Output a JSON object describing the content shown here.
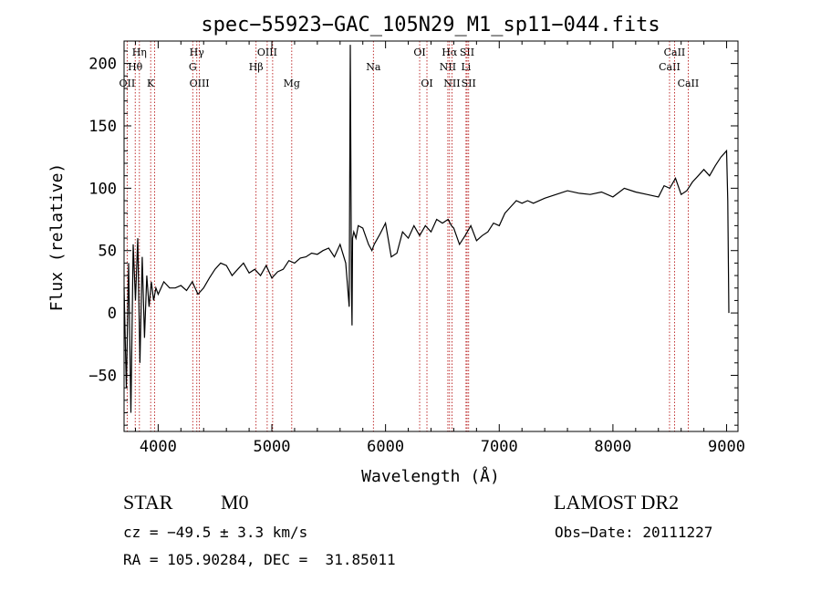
{
  "chart_data": {
    "type": "line",
    "title": "spec−55923−GAC_105N29_M1_sp11−044.fits",
    "xlabel": "Wavelength (Å)",
    "ylabel": "Flux (relative)",
    "xlim": [
      3700,
      9100
    ],
    "ylim": [
      -95,
      218
    ],
    "x_ticks": [
      4000,
      5000,
      6000,
      7000,
      8000,
      9000
    ],
    "y_ticks": [
      -50,
      0,
      50,
      100,
      150,
      200
    ],
    "y_tick_labels": [
      "−50",
      "0",
      "50",
      "100",
      "150",
      "200"
    ],
    "grid": false,
    "series": [
      {
        "x": [
          3700,
          3720,
          3740,
          3760,
          3780,
          3800,
          3820,
          3840,
          3860,
          3880,
          3900,
          3920,
          3940,
          3960,
          3980,
          4000,
          4050,
          4100,
          4150,
          4200,
          4250,
          4300,
          4350,
          4400,
          4450,
          4500,
          4550,
          4600,
          4650,
          4700,
          4750,
          4800,
          4850,
          4900,
          4950,
          5000,
          5050,
          5100,
          5150,
          5200,
          5250,
          5300,
          5350,
          5400,
          5450,
          5500,
          5550,
          5600,
          5650,
          5680,
          5690,
          5700,
          5705,
          5710,
          5720,
          5740,
          5760,
          5800,
          5850,
          5880,
          5900,
          5950,
          6000,
          6050,
          6100,
          6150,
          6200,
          6250,
          6300,
          6350,
          6400,
          6450,
          6500,
          6550,
          6580,
          6600,
          6650,
          6700,
          6750,
          6800,
          6850,
          6900,
          6950,
          7000,
          7050,
          7100,
          7150,
          7200,
          7250,
          7300,
          7400,
          7500,
          7600,
          7700,
          7800,
          7900,
          8000,
          8100,
          8200,
          8300,
          8400,
          8450,
          8500,
          8550,
          8600,
          8650,
          8700,
          8750,
          8800,
          8850,
          8900,
          8950,
          9000,
          9010,
          9020
        ],
        "y": [
          20,
          -60,
          40,
          -80,
          55,
          10,
          60,
          -40,
          45,
          -20,
          30,
          5,
          25,
          10,
          20,
          15,
          25,
          20,
          20,
          22,
          18,
          25,
          15,
          20,
          28,
          35,
          40,
          38,
          30,
          35,
          40,
          32,
          35,
          30,
          38,
          28,
          33,
          35,
          42,
          40,
          44,
          45,
          48,
          47,
          50,
          52,
          45,
          55,
          40,
          5,
          215,
          20,
          -10,
          60,
          65,
          60,
          70,
          68,
          55,
          50,
          55,
          63,
          72,
          45,
          48,
          65,
          60,
          70,
          62,
          70,
          65,
          75,
          72,
          75,
          70,
          68,
          55,
          62,
          70,
          58,
          62,
          65,
          72,
          70,
          80,
          85,
          90,
          88,
          90,
          88,
          92,
          95,
          98,
          96,
          95,
          97,
          93,
          100,
          97,
          95,
          93,
          102,
          100,
          108,
          95,
          98,
          105,
          110,
          115,
          110,
          118,
          125,
          130,
          90,
          0
        ]
      }
    ],
    "line_markers": [
      {
        "wl": 3727,
        "label": "OII",
        "row": 3
      },
      {
        "wl": 3798,
        "label": "Hθ",
        "row": 2
      },
      {
        "wl": 3835,
        "label": "Hη",
        "row": 1
      },
      {
        "wl": 3934,
        "label": "K",
        "row": 3
      },
      {
        "wl": 3969,
        "label": "",
        "row": 0
      },
      {
        "wl": 4304,
        "label": "G",
        "row": 2
      },
      {
        "wl": 4340,
        "label": "Hγ",
        "row": 1
      },
      {
        "wl": 4363,
        "label": "OIII",
        "row": 3
      },
      {
        "wl": 4861,
        "label": "Hβ",
        "row": 2
      },
      {
        "wl": 4959,
        "label": "OIII",
        "row": 1
      },
      {
        "wl": 5007,
        "label": "",
        "row": 0
      },
      {
        "wl": 5175,
        "label": "Mg",
        "row": 3
      },
      {
        "wl": 5893,
        "label": "Na",
        "row": 2
      },
      {
        "wl": 6300,
        "label": "OI",
        "row": 1
      },
      {
        "wl": 6364,
        "label": "OI",
        "row": 3
      },
      {
        "wl": 6548,
        "label": "NII",
        "row": 2
      },
      {
        "wl": 6563,
        "label": "Hα",
        "row": 1
      },
      {
        "wl": 6584,
        "label": "NII",
        "row": 3
      },
      {
        "wl": 6708,
        "label": "Li",
        "row": 2
      },
      {
        "wl": 6717,
        "label": "SII",
        "row": 1
      },
      {
        "wl": 6731,
        "label": "SII",
        "row": 3
      },
      {
        "wl": 8498,
        "label": "CaII",
        "row": 2
      },
      {
        "wl": 8542,
        "label": "CaII",
        "row": 1
      },
      {
        "wl": 8662,
        "label": "CaII",
        "row": 3
      }
    ]
  },
  "info": {
    "class": "STAR",
    "subclass": "M0",
    "survey": "LAMOST DR2",
    "cz": "cz = −49.5 ± 3.3 km/s",
    "obs_date": "Obs−Date: 20111227",
    "radec": "RA = 105.90284, DEC =  31.85011"
  }
}
